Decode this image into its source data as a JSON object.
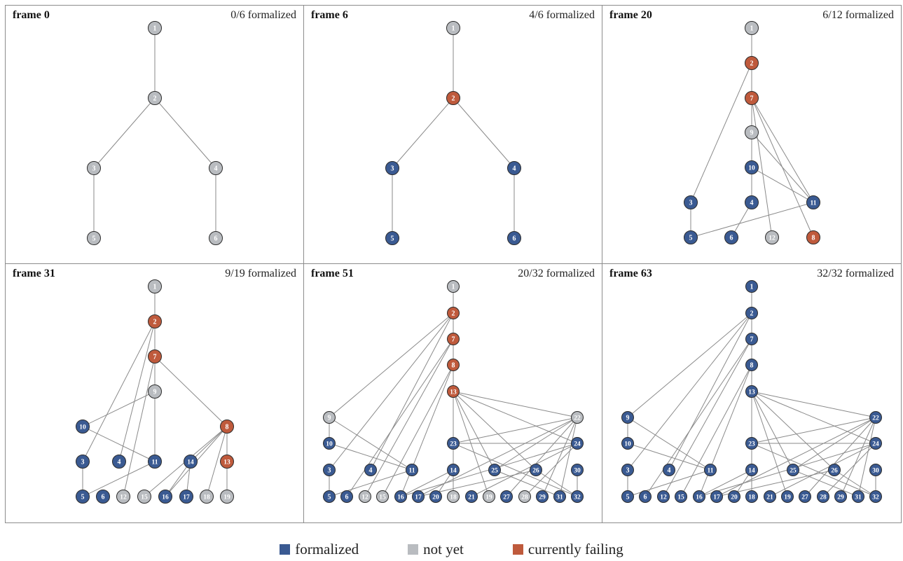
{
  "colors": {
    "formalized": "#3a5a92",
    "not_yet": "#b9bcc0",
    "failing": "#bf5a3c",
    "edge": "#8a8a8a"
  },
  "legend": {
    "formalized": "formalized",
    "not_yet": "not yet",
    "failing": "currently failing"
  },
  "panels": [
    {
      "title": "frame 0",
      "count": "0/6 formalized",
      "nodes": [
        {
          "id": "1",
          "s": "g"
        },
        {
          "id": "2",
          "s": "g"
        },
        {
          "id": "3",
          "s": "g"
        },
        {
          "id": "4",
          "s": "g"
        },
        {
          "id": "5",
          "s": "g"
        },
        {
          "id": "6",
          "s": "g"
        }
      ],
      "edges": [
        [
          "1",
          "2"
        ],
        [
          "2",
          "3"
        ],
        [
          "2",
          "4"
        ],
        [
          "3",
          "5"
        ],
        [
          "4",
          "6"
        ]
      ]
    },
    {
      "title": "frame 6",
      "count": "4/6 formalized",
      "nodes": [
        {
          "id": "1",
          "s": "g"
        },
        {
          "id": "2",
          "s": "r"
        },
        {
          "id": "3",
          "s": "b"
        },
        {
          "id": "4",
          "s": "b"
        },
        {
          "id": "5",
          "s": "b"
        },
        {
          "id": "6",
          "s": "b"
        }
      ],
      "edges": [
        [
          "1",
          "2"
        ],
        [
          "2",
          "3"
        ],
        [
          "2",
          "4"
        ],
        [
          "3",
          "5"
        ],
        [
          "4",
          "6"
        ]
      ]
    },
    {
      "title": "frame 20",
      "count": "6/12 formalized",
      "nodes": [
        {
          "id": "1",
          "s": "g"
        },
        {
          "id": "2",
          "s": "r"
        },
        {
          "id": "7",
          "s": "r"
        },
        {
          "id": "9",
          "s": "g"
        },
        {
          "id": "10",
          "s": "b"
        },
        {
          "id": "3",
          "s": "b"
        },
        {
          "id": "4",
          "s": "b"
        },
        {
          "id": "11",
          "s": "b"
        },
        {
          "id": "5",
          "s": "b"
        },
        {
          "id": "6",
          "s": "b"
        },
        {
          "id": "12",
          "s": "g"
        },
        {
          "id": "8",
          "s": "r"
        }
      ],
      "edges": [
        [
          "1",
          "2"
        ],
        [
          "2",
          "7"
        ],
        [
          "2",
          "3"
        ],
        [
          "7",
          "9"
        ],
        [
          "7",
          "11"
        ],
        [
          "7",
          "12"
        ],
        [
          "7",
          "8"
        ],
        [
          "9",
          "10"
        ],
        [
          "9",
          "11"
        ],
        [
          "10",
          "4"
        ],
        [
          "10",
          "11"
        ],
        [
          "3",
          "5"
        ],
        [
          "4",
          "6"
        ],
        [
          "11",
          "5"
        ]
      ]
    },
    {
      "title": "frame 31",
      "count": "9/19 formalized",
      "nodes": [
        {
          "id": "1",
          "s": "g"
        },
        {
          "id": "2",
          "s": "r"
        },
        {
          "id": "7",
          "s": "r"
        },
        {
          "id": "9",
          "s": "g"
        },
        {
          "id": "10",
          "s": "b"
        },
        {
          "id": "8",
          "s": "r"
        },
        {
          "id": "3",
          "s": "b"
        },
        {
          "id": "4",
          "s": "b"
        },
        {
          "id": "11",
          "s": "b"
        },
        {
          "id": "14",
          "s": "b"
        },
        {
          "id": "13",
          "s": "r"
        },
        {
          "id": "5",
          "s": "b"
        },
        {
          "id": "6",
          "s": "b"
        },
        {
          "id": "12",
          "s": "g"
        },
        {
          "id": "15",
          "s": "g"
        },
        {
          "id": "16",
          "s": "b"
        },
        {
          "id": "17",
          "s": "b"
        },
        {
          "id": "18",
          "s": "g"
        },
        {
          "id": "19",
          "s": "g"
        }
      ],
      "edges": [
        [
          "1",
          "2"
        ],
        [
          "2",
          "7"
        ],
        [
          "2",
          "3"
        ],
        [
          "2",
          "4"
        ],
        [
          "7",
          "9"
        ],
        [
          "7",
          "8"
        ],
        [
          "7",
          "12"
        ],
        [
          "9",
          "10"
        ],
        [
          "9",
          "11"
        ],
        [
          "10",
          "11"
        ],
        [
          "3",
          "5"
        ],
        [
          "11",
          "5"
        ],
        [
          "8",
          "14"
        ],
        [
          "8",
          "13"
        ],
        [
          "8",
          "15"
        ],
        [
          "8",
          "16"
        ],
        [
          "8",
          "18"
        ],
        [
          "14",
          "16"
        ],
        [
          "14",
          "17"
        ],
        [
          "13",
          "19"
        ]
      ]
    },
    {
      "title": "frame 51",
      "count": "20/32 formalized",
      "nodes": [
        {
          "id": "1",
          "s": "g"
        },
        {
          "id": "2",
          "s": "r"
        },
        {
          "id": "7",
          "s": "r"
        },
        {
          "id": "8",
          "s": "r"
        },
        {
          "id": "13",
          "s": "r"
        },
        {
          "id": "9",
          "s": "g"
        },
        {
          "id": "22",
          "s": "g"
        },
        {
          "id": "10",
          "s": "b"
        },
        {
          "id": "23",
          "s": "b"
        },
        {
          "id": "24",
          "s": "b"
        },
        {
          "id": "3",
          "s": "b"
        },
        {
          "id": "4",
          "s": "b"
        },
        {
          "id": "11",
          "s": "b"
        },
        {
          "id": "14",
          "s": "b"
        },
        {
          "id": "25",
          "s": "b"
        },
        {
          "id": "26",
          "s": "b"
        },
        {
          "id": "30",
          "s": "b"
        },
        {
          "id": "5",
          "s": "b"
        },
        {
          "id": "6",
          "s": "b"
        },
        {
          "id": "12",
          "s": "g"
        },
        {
          "id": "15",
          "s": "g"
        },
        {
          "id": "16",
          "s": "b"
        },
        {
          "id": "17",
          "s": "b"
        },
        {
          "id": "20",
          "s": "b"
        },
        {
          "id": "18",
          "s": "g"
        },
        {
          "id": "21",
          "s": "b"
        },
        {
          "id": "19",
          "s": "g"
        },
        {
          "id": "27",
          "s": "b"
        },
        {
          "id": "28",
          "s": "g"
        },
        {
          "id": "29",
          "s": "b"
        },
        {
          "id": "31",
          "s": "b"
        },
        {
          "id": "32",
          "s": "b"
        }
      ],
      "edges": [
        [
          "1",
          "2"
        ],
        [
          "2",
          "7"
        ],
        [
          "2",
          "9"
        ],
        [
          "2",
          "3"
        ],
        [
          "2",
          "4"
        ],
        [
          "7",
          "8"
        ],
        [
          "7",
          "6"
        ],
        [
          "7",
          "12"
        ],
        [
          "8",
          "13"
        ],
        [
          "8",
          "15"
        ],
        [
          "8",
          "16"
        ],
        [
          "13",
          "22"
        ],
        [
          "13",
          "23"
        ],
        [
          "13",
          "24"
        ],
        [
          "13",
          "25"
        ],
        [
          "13",
          "26"
        ],
        [
          "13",
          "19"
        ],
        [
          "9",
          "10"
        ],
        [
          "9",
          "11"
        ],
        [
          "10",
          "11"
        ],
        [
          "3",
          "5"
        ],
        [
          "11",
          "5"
        ],
        [
          "22",
          "17"
        ],
        [
          "22",
          "23"
        ],
        [
          "22",
          "25"
        ],
        [
          "22",
          "29"
        ],
        [
          "22",
          "31"
        ],
        [
          "22",
          "27"
        ],
        [
          "23",
          "14"
        ],
        [
          "23",
          "24"
        ],
        [
          "23",
          "32"
        ],
        [
          "24",
          "16"
        ],
        [
          "24",
          "28"
        ],
        [
          "24",
          "21"
        ],
        [
          "14",
          "16"
        ],
        [
          "14",
          "20"
        ],
        [
          "14",
          "18"
        ],
        [
          "25",
          "31"
        ],
        [
          "26",
          "17"
        ],
        [
          "26",
          "32"
        ],
        [
          "30",
          "32"
        ]
      ]
    },
    {
      "title": "frame 63",
      "count": "32/32 formalized",
      "nodes": [
        {
          "id": "1",
          "s": "b"
        },
        {
          "id": "2",
          "s": "b"
        },
        {
          "id": "7",
          "s": "b"
        },
        {
          "id": "8",
          "s": "b"
        },
        {
          "id": "13",
          "s": "b"
        },
        {
          "id": "9",
          "s": "b"
        },
        {
          "id": "22",
          "s": "b"
        },
        {
          "id": "10",
          "s": "b"
        },
        {
          "id": "23",
          "s": "b"
        },
        {
          "id": "24",
          "s": "b"
        },
        {
          "id": "3",
          "s": "b"
        },
        {
          "id": "4",
          "s": "b"
        },
        {
          "id": "11",
          "s": "b"
        },
        {
          "id": "14",
          "s": "b"
        },
        {
          "id": "25",
          "s": "b"
        },
        {
          "id": "26",
          "s": "b"
        },
        {
          "id": "30",
          "s": "b"
        },
        {
          "id": "5",
          "s": "b"
        },
        {
          "id": "6",
          "s": "b"
        },
        {
          "id": "12",
          "s": "b"
        },
        {
          "id": "15",
          "s": "b"
        },
        {
          "id": "16",
          "s": "b"
        },
        {
          "id": "17",
          "s": "b"
        },
        {
          "id": "20",
          "s": "b"
        },
        {
          "id": "18",
          "s": "b"
        },
        {
          "id": "21",
          "s": "b"
        },
        {
          "id": "19",
          "s": "b"
        },
        {
          "id": "27",
          "s": "b"
        },
        {
          "id": "28",
          "s": "b"
        },
        {
          "id": "29",
          "s": "b"
        },
        {
          "id": "31",
          "s": "b"
        },
        {
          "id": "32",
          "s": "b"
        }
      ],
      "edges": [
        [
          "1",
          "2"
        ],
        [
          "2",
          "7"
        ],
        [
          "2",
          "9"
        ],
        [
          "2",
          "3"
        ],
        [
          "2",
          "4"
        ],
        [
          "7",
          "8"
        ],
        [
          "7",
          "6"
        ],
        [
          "7",
          "12"
        ],
        [
          "8",
          "13"
        ],
        [
          "8",
          "15"
        ],
        [
          "8",
          "16"
        ],
        [
          "13",
          "22"
        ],
        [
          "13",
          "23"
        ],
        [
          "13",
          "24"
        ],
        [
          "13",
          "25"
        ],
        [
          "13",
          "26"
        ],
        [
          "13",
          "19"
        ],
        [
          "9",
          "10"
        ],
        [
          "9",
          "11"
        ],
        [
          "10",
          "11"
        ],
        [
          "3",
          "5"
        ],
        [
          "11",
          "5"
        ],
        [
          "22",
          "17"
        ],
        [
          "22",
          "23"
        ],
        [
          "22",
          "25"
        ],
        [
          "22",
          "29"
        ],
        [
          "22",
          "31"
        ],
        [
          "22",
          "27"
        ],
        [
          "23",
          "14"
        ],
        [
          "23",
          "24"
        ],
        [
          "23",
          "32"
        ],
        [
          "24",
          "16"
        ],
        [
          "24",
          "28"
        ],
        [
          "24",
          "21"
        ],
        [
          "14",
          "16"
        ],
        [
          "14",
          "20"
        ],
        [
          "14",
          "18"
        ],
        [
          "25",
          "31"
        ],
        [
          "26",
          "17"
        ],
        [
          "26",
          "32"
        ],
        [
          "30",
          "32"
        ]
      ]
    }
  ]
}
